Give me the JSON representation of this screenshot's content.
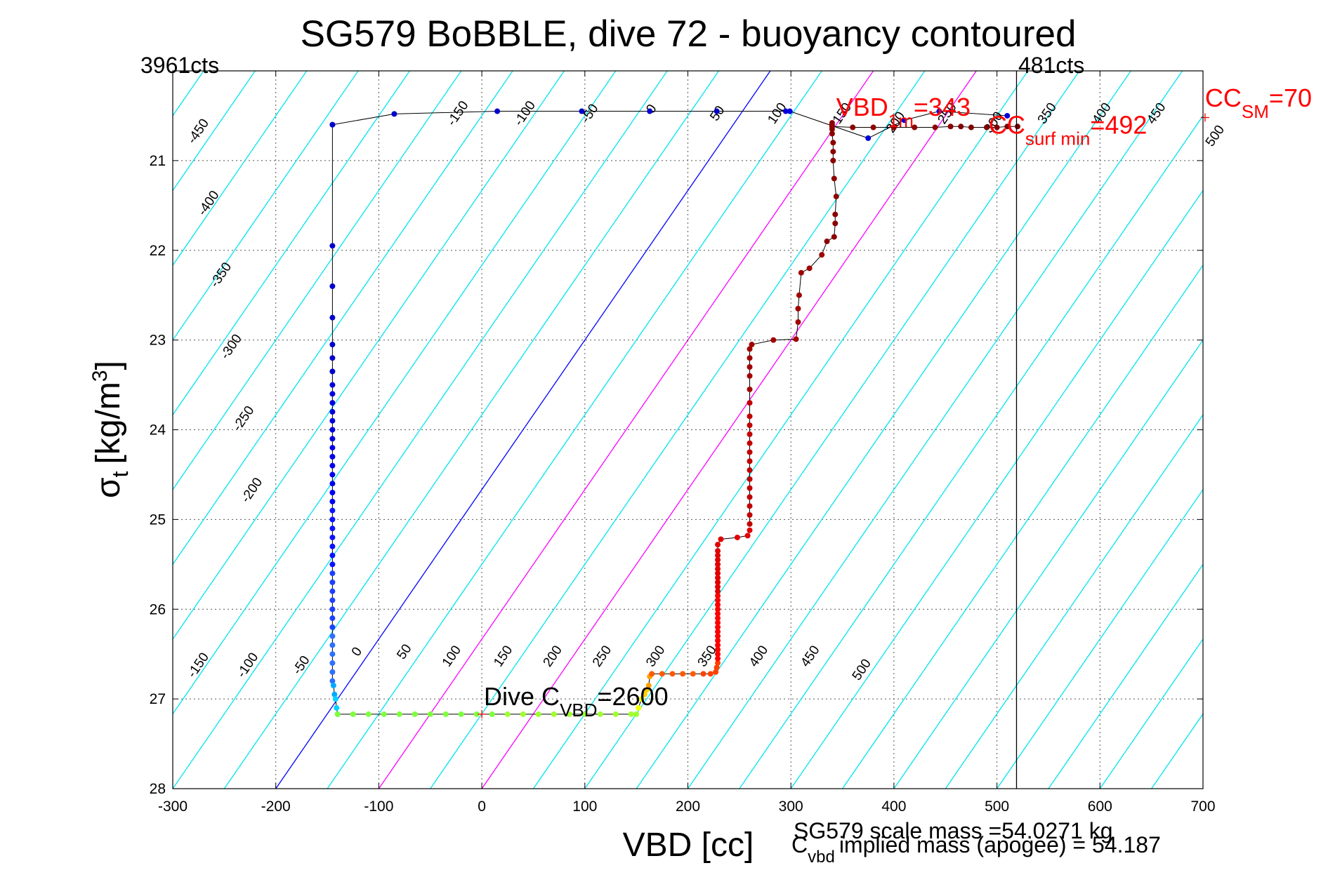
{
  "chart_data": {
    "type": "scatter",
    "title": "SG579 BoBBLE, dive 72 - buoyancy contoured",
    "xlabel": "VBD [cc]",
    "ylabel": {
      "main": "σ",
      "sub": "t",
      "unit_pre": "[kg/m",
      "unit_sup": "3",
      "unit_post": "]"
    },
    "xlim": [
      -300,
      700
    ],
    "ylim": [
      20,
      28
    ],
    "y_reversed": true,
    "grid": true,
    "x_ticks": [
      "-300",
      "-200",
      "-100",
      "0",
      "100",
      "200",
      "300",
      "400",
      "500",
      "600",
      "700"
    ],
    "y_ticks": [
      "21",
      "22",
      "23",
      "24",
      "25",
      "26",
      "27",
      "28"
    ],
    "top_left_label": "3961cts",
    "top_right_label": "481cts",
    "top_right_line_x": 519,
    "contour_slope_cc_per_sigma": 60,
    "contour_colors": {
      "regular": "#00e5ee",
      "neutral": "#0000ff",
      "highlight": "#ff00ff",
      "track": "#000000"
    },
    "contours": [
      -550,
      -500,
      -450,
      -400,
      -350,
      -300,
      -250,
      -200,
      -150,
      -100,
      -50,
      0,
      50,
      100,
      150,
      200,
      250,
      300,
      350,
      400,
      450,
      500,
      550,
      600,
      650,
      700,
      750,
      800,
      850
    ],
    "neutral_contour": 0,
    "highlight_contours": [
      100,
      200
    ],
    "contour_labels_upper": [
      {
        "text": "-450",
        "at": [
          -272,
          20.7
        ]
      },
      {
        "text": "-400",
        "at": [
          -262,
          21.5
        ]
      },
      {
        "text": "-350",
        "at": [
          -250,
          22.3
        ]
      },
      {
        "text": "-300",
        "at": [
          -240,
          23.1
        ]
      },
      {
        "text": "-250",
        "at": [
          -228,
          23.9
        ]
      },
      {
        "text": "-200",
        "at": [
          -220,
          24.7
        ]
      },
      {
        "text": "-150",
        "at": [
          -20,
          20.5
        ]
      },
      {
        "text": "-100",
        "at": [
          45,
          20.5
        ]
      },
      {
        "text": "-50",
        "at": [
          108,
          20.5
        ]
      },
      {
        "text": "0",
        "at": [
          168,
          20.45
        ]
      },
      {
        "text": "50",
        "at": [
          232,
          20.5
        ]
      },
      {
        "text": "100",
        "at": [
          290,
          20.5
        ]
      },
      {
        "text": "150",
        "at": [
          353,
          20.5
        ]
      },
      {
        "text": "200",
        "at": [
          405,
          20.6
        ]
      },
      {
        "text": "250",
        "at": [
          455,
          20.5
        ]
      },
      {
        "text": "300",
        "at": [
          500,
          20.6
        ]
      },
      {
        "text": "350",
        "at": [
          552,
          20.5
        ]
      },
      {
        "text": "400",
        "at": [
          605,
          20.5
        ]
      },
      {
        "text": "450",
        "at": [
          658,
          20.5
        ]
      },
      {
        "text": "500",
        "at": [
          715,
          20.75
        ]
      }
    ],
    "contour_labels_lower": [
      {
        "text": "-150",
        "at": [
          -272,
          26.65
        ]
      },
      {
        "text": "-100",
        "at": [
          -224,
          26.65
        ]
      },
      {
        "text": "-50",
        "at": [
          -172,
          26.65
        ]
      },
      {
        "text": "0",
        "at": [
          -118,
          26.5
        ]
      },
      {
        "text": "50",
        "at": [
          -72,
          26.5
        ]
      },
      {
        "text": "100",
        "at": [
          -26,
          26.55
        ]
      },
      {
        "text": "150",
        "at": [
          24,
          26.55
        ]
      },
      {
        "text": "200",
        "at": [
          72,
          26.55
        ]
      },
      {
        "text": "250",
        "at": [
          120,
          26.55
        ]
      },
      {
        "text": "300",
        "at": [
          172,
          26.55
        ]
      },
      {
        "text": "350",
        "at": [
          222,
          26.55
        ]
      },
      {
        "text": "400",
        "at": [
          272,
          26.55
        ]
      },
      {
        "text": "450",
        "at": [
          322,
          26.55
        ]
      },
      {
        "text": "500",
        "at": [
          372,
          26.7
        ]
      }
    ],
    "series": [
      {
        "colors": [
          "#0000cc",
          "#0000dd",
          "#0000ee",
          "#0a14ff",
          "#1e40ff",
          "#2f70ff"
        ],
        "x": [
          -145,
          -145,
          -145,
          -145,
          -145,
          -145,
          -145,
          -145,
          -145,
          -145,
          -145,
          -145,
          -145,
          -145,
          -145,
          -145,
          -145,
          -145,
          -145,
          -145,
          -145,
          -145,
          -145,
          -145,
          -145,
          -145,
          -145,
          -145,
          -145,
          -145,
          -145,
          -145,
          -145,
          -145,
          -145,
          -145,
          -145,
          -145,
          -145,
          -145,
          -145
        ],
        "y": [
          20.6,
          21.95,
          22.4,
          22.75,
          23.05,
          23.2,
          23.35,
          23.5,
          23.6,
          23.7,
          23.8,
          23.9,
          24.0,
          24.1,
          24.2,
          24.3,
          24.4,
          24.5,
          24.6,
          24.7,
          24.8,
          24.9,
          25.0,
          25.1,
          25.2,
          25.3,
          25.4,
          25.5,
          25.6,
          25.7,
          25.8,
          25.9,
          26.0,
          26.1,
          26.2,
          26.3,
          26.4,
          26.5,
          26.6,
          26.7,
          26.8
        ]
      },
      {
        "colors": [
          "#00aaff",
          "#00d4ff",
          "#00e8ff"
        ],
        "x": [
          -144,
          -143,
          -142,
          -141,
          -140
        ],
        "y": [
          26.85,
          26.95,
          27.0,
          27.1,
          27.17
        ]
      },
      {
        "colors": [
          "#7fff40",
          "#a0ff30"
        ],
        "x": [
          -140,
          -125,
          -110,
          -95,
          -80,
          -65,
          -50,
          -35,
          -20,
          -5,
          10,
          25,
          40,
          55,
          70,
          85,
          100,
          115,
          130,
          145,
          150
        ],
        "y": [
          27.17,
          27.17,
          27.17,
          27.17,
          27.17,
          27.17,
          27.17,
          27.17,
          27.17,
          27.17,
          27.17,
          27.17,
          27.17,
          27.17,
          27.17,
          27.17,
          27.17,
          27.17,
          27.17,
          27.17,
          27.17
        ]
      },
      {
        "colors": [
          "#f0ff00",
          "#ffd000",
          "#ffa000"
        ],
        "x": [
          152,
          155,
          158,
          160,
          162,
          163
        ],
        "y": [
          27.1,
          27.0,
          26.95,
          26.9,
          26.85,
          26.75
        ]
      },
      {
        "colors": [
          "#ff5a00",
          "#ff4000"
        ],
        "x": [
          165,
          175,
          185,
          195,
          205,
          215,
          222,
          227,
          228,
          229
        ],
        "y": [
          26.72,
          26.72,
          26.72,
          26.72,
          26.72,
          26.72,
          26.72,
          26.7,
          26.65,
          26.6
        ]
      },
      {
        "colors": [
          "#ff0000",
          "#e00000"
        ],
        "x": [
          229,
          229,
          229,
          229,
          229,
          229,
          229,
          229,
          229,
          229,
          229,
          229,
          229,
          229,
          229,
          229,
          229,
          229,
          229,
          229,
          229,
          229,
          229,
          229,
          229,
          229,
          232,
          248,
          258,
          260
        ],
        "y": [
          26.55,
          26.5,
          26.45,
          26.4,
          26.35,
          26.3,
          26.25,
          26.2,
          26.15,
          26.1,
          26.05,
          26.0,
          25.95,
          25.9,
          25.85,
          25.8,
          25.75,
          25.7,
          25.65,
          25.6,
          25.55,
          25.5,
          25.45,
          25.4,
          25.35,
          25.28,
          25.22,
          25.2,
          25.18,
          25.12
        ]
      },
      {
        "colors": [
          "#c00000",
          "#a00000",
          "#8b0000"
        ],
        "x": [
          260,
          260,
          260,
          260,
          260,
          260,
          260,
          260,
          260,
          260,
          260,
          260,
          260,
          260,
          260,
          260,
          260,
          260,
          260,
          262,
          283,
          305,
          307,
          307,
          308,
          310,
          318,
          330,
          335,
          342,
          343,
          343,
          344,
          342,
          341,
          341,
          341,
          340,
          340,
          340,
          340
        ],
        "y": [
          25.05,
          24.95,
          24.85,
          24.75,
          24.65,
          24.55,
          24.45,
          24.35,
          24.25,
          24.15,
          24.05,
          23.95,
          23.85,
          23.7,
          23.55,
          23.4,
          23.3,
          23.2,
          23.1,
          23.05,
          23.0,
          22.99,
          22.8,
          22.65,
          22.5,
          22.25,
          22.2,
          22.05,
          21.9,
          21.85,
          21.7,
          21.6,
          21.4,
          21.2,
          21.0,
          20.9,
          20.8,
          20.7,
          20.65,
          20.6,
          20.58
        ]
      },
      {
        "colors": [
          "#8b0000",
          "#800000"
        ],
        "x": [
          340,
          360,
          380,
          400,
          420,
          440,
          455,
          465,
          475,
          490,
          500,
          510,
          520
        ],
        "y": [
          20.62,
          20.63,
          20.63,
          20.63,
          20.63,
          20.63,
          20.62,
          20.62,
          20.63,
          20.63,
          20.63,
          20.62,
          20.62
        ]
      },
      {
        "colors": [
          "#0000cc",
          "#0000dd"
        ],
        "x": [
          -145,
          -85,
          15,
          97,
          163,
          228,
          295,
          299,
          375,
          410,
          444,
          510
        ],
        "y": [
          20.6,
          20.48,
          20.45,
          20.45,
          20.45,
          20.45,
          20.45,
          20.45,
          20.75,
          20.55,
          20.45,
          20.5
        ]
      }
    ],
    "annotations": [
      {
        "parts": [
          {
            "t": "Dive C"
          },
          {
            "t": "VBD",
            "sub": true
          },
          {
            "t": "=2600"
          }
        ],
        "at": [
          2,
          27.07
        ],
        "color": "#000000"
      },
      {
        "parts": [
          {
            "t": "VBD"
          },
          {
            "t": "1m",
            "sub": true
          },
          {
            "t": "=343"
          }
        ],
        "at": [
          344,
          20.5
        ],
        "color": "#ff0000"
      },
      {
        "parts": [
          {
            "t": "CC"
          },
          {
            "t": "surf min",
            "sub": true
          },
          {
            "t": "=492"
          }
        ],
        "at": [
          492,
          20.7
        ],
        "color": "#ff0000"
      },
      {
        "parts": [
          {
            "t": "CC"
          },
          {
            "t": "SM",
            "sub": true
          },
          {
            "t": "=70"
          }
        ],
        "at": [
          702,
          20.4
        ],
        "color": "#ff0000"
      }
    ],
    "markers": [
      {
        "x": 702,
        "y": 20.52
      },
      {
        "x": 0,
        "y": 27.17
      }
    ],
    "footer_lines": [
      "SG579 scale mass =54.0271 kg",
      {
        "parts": [
          {
            "t": "C"
          },
          {
            "t": "vbd",
            "sub": true
          },
          {
            "t": "implied mass (apogee) = 54.187"
          }
        ]
      }
    ]
  }
}
